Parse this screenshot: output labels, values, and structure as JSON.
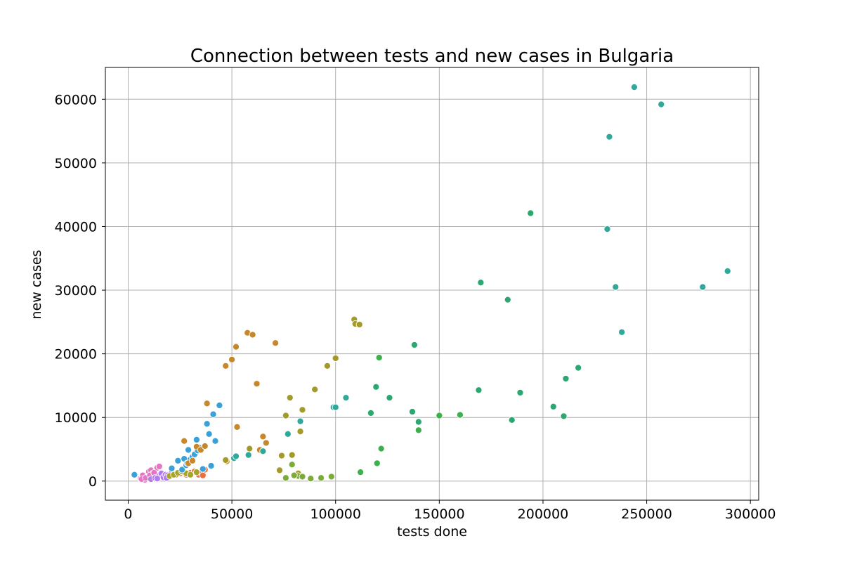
{
  "chart_data": {
    "type": "scatter",
    "title": "Connection between tests and new cases in Bulgaria",
    "xlabel": "tests done",
    "ylabel": "new cases",
    "xlim": [
      -11000,
      304000
    ],
    "ylim": [
      -3000,
      65000
    ],
    "grid": true,
    "legend": "none",
    "x_ticks": [
      0,
      50000,
      100000,
      150000,
      200000,
      250000,
      300000
    ],
    "x_tick_labels": [
      "0",
      "50000",
      "100000",
      "150000",
      "200000",
      "250000",
      "300000"
    ],
    "y_ticks": [
      0,
      10000,
      20000,
      30000,
      40000,
      50000,
      60000
    ],
    "y_tick_labels": [
      "0",
      "10000",
      "20000",
      "30000",
      "40000",
      "50000",
      "60000"
    ],
    "series": [
      {
        "color": "#e377c2",
        "x": [
          6000,
          7000,
          8000,
          9000,
          10000,
          11000,
          12000,
          13000,
          14000,
          15000,
          16000,
          17000,
          6500,
          8500,
          10500,
          12500
        ],
        "y": [
          400,
          900,
          200,
          600,
          1500,
          1700,
          1200,
          800,
          2100,
          2300,
          1000,
          700,
          300,
          500,
          900,
          1300
        ]
      },
      {
        "color": "#b37bf0",
        "x": [
          11000,
          13000,
          15000,
          16000,
          17000,
          18000,
          19000,
          20000,
          21000,
          22000,
          14000,
          18500
        ],
        "y": [
          300,
          500,
          800,
          1200,
          600,
          1000,
          900,
          700,
          1300,
          1100,
          400,
          500
        ]
      },
      {
        "color": "#f26b3a",
        "x": [
          23000,
          25000,
          28000,
          30000,
          32000,
          34000,
          35000,
          36000,
          37000
        ],
        "y": [
          1000,
          1200,
          1000,
          1300,
          1500,
          1000,
          1400,
          900,
          1800
        ]
      },
      {
        "color": "#a5a52a",
        "x": [
          20000,
          22000,
          24000,
          26000,
          28000,
          30000,
          33000
        ],
        "y": [
          800,
          1000,
          1300,
          1500,
          1200,
          1000,
          1400
        ]
      },
      {
        "color": "#3aa0d8",
        "x": [
          3000,
          24000,
          26000,
          27000,
          28000,
          29000,
          30000,
          31000,
          32000,
          33000,
          34000,
          36000,
          38000,
          39000,
          40000,
          41000,
          42000,
          44000,
          21000,
          28500,
          33500
        ],
        "y": [
          1000,
          3200,
          1800,
          3500,
          2500,
          4900,
          3400,
          3800,
          4200,
          6500,
          5300,
          1900,
          9000,
          7400,
          2400,
          10500,
          6300,
          11900,
          2000,
          2800,
          4800
        ]
      },
      {
        "color": "#c6882a",
        "x": [
          27000,
          29000,
          31000,
          33000,
          35000,
          37000,
          38000,
          47000,
          47500,
          50000,
          52000,
          52500,
          57500,
          60000,
          62000,
          63500,
          65000,
          66500,
          71000
        ],
        "y": [
          6300,
          2800,
          3200,
          5400,
          4900,
          5500,
          12200,
          18100,
          3100,
          19100,
          21100,
          8500,
          23300,
          23000,
          15300,
          4900,
          7000,
          6000,
          21700
        ]
      },
      {
        "color": "#a39a2a",
        "x": [
          47000,
          73000,
          74000,
          76000,
          78000,
          79000,
          82000,
          83000,
          84000,
          90000,
          96000,
          100000,
          109000,
          109500,
          111500,
          58500
        ],
        "y": [
          3300,
          1700,
          4000,
          10300,
          13100,
          4100,
          1200,
          7800,
          11200,
          14400,
          18100,
          19300,
          25400,
          24700,
          24600,
          5100
        ]
      },
      {
        "color": "#7cab3a",
        "x": [
          76000,
          79000,
          82000,
          84000,
          88000,
          93000,
          98000,
          80000
        ],
        "y": [
          500,
          2600,
          800,
          700,
          400,
          500,
          700,
          900
        ]
      },
      {
        "color": "#3cb04a",
        "x": [
          112000,
          120000,
          121000,
          122000,
          140000,
          150000,
          160000
        ],
        "y": [
          1400,
          2800,
          19400,
          5100,
          8000,
          10300,
          10400
        ]
      },
      {
        "color": "#2aa870",
        "x": [
          117000,
          119500,
          126000,
          137000,
          138000,
          140000,
          169000,
          170000,
          183000,
          185000,
          189000,
          194000,
          205000,
          210000,
          211000,
          217000
        ],
        "y": [
          10700,
          14800,
          13100,
          10900,
          21400,
          9300,
          14300,
          31200,
          28500,
          9600,
          13900,
          42100,
          11700,
          10200,
          16100,
          17800
        ]
      },
      {
        "color": "#30a99a",
        "x": [
          231000,
          232000,
          235000,
          238000,
          244000,
          257000,
          277000,
          289000,
          105000,
          99000,
          100000,
          83000,
          77000,
          65000,
          58000,
          51000,
          52000
        ],
        "y": [
          39600,
          54100,
          30500,
          23400,
          61900,
          59200,
          30500,
          33000,
          13100,
          11600,
          11600,
          9400,
          7400,
          4700,
          4100,
          3600,
          3900
        ]
      }
    ]
  }
}
